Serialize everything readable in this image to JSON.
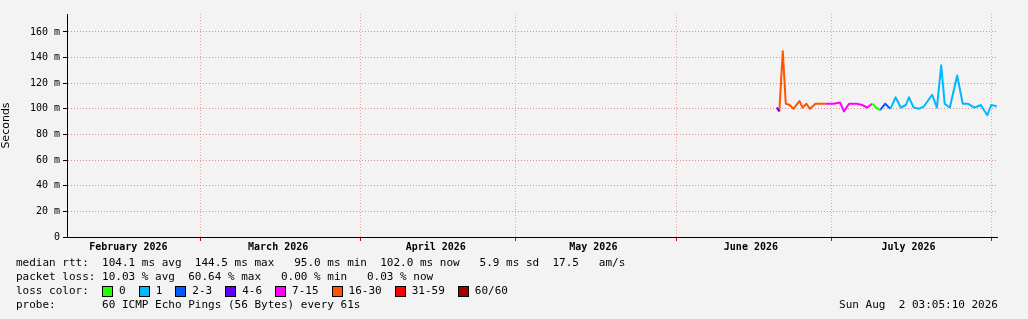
{
  "chart_data": {
    "type": "line",
    "ylabel": "Seconds",
    "legend_title": "loss color:",
    "legend": "bottom",
    "grid": true,
    "marker": "none",
    "line_style": "solid",
    "xlim": [
      "2026-02-03T03:05",
      "2026-08-02T03:05"
    ],
    "xticks": [
      {
        "value": "2026-02-15",
        "label": "February 2026"
      },
      {
        "value": "2026-03-01",
        "label": null
      },
      {
        "value": "2026-03-16",
        "label": "March 2026"
      },
      {
        "value": "2026-04-01",
        "label": null
      },
      {
        "value": "2026-04-15T12:00",
        "label": "April 2026"
      },
      {
        "value": "2026-05-01",
        "label": null
      },
      {
        "value": "2026-05-16",
        "label": "May 2026"
      },
      {
        "value": "2026-06-01",
        "label": null
      },
      {
        "value": "2026-06-15T12:00",
        "label": "June 2026"
      },
      {
        "value": "2026-07-01",
        "label": null
      },
      {
        "value": "2026-07-16",
        "label": "July 2026"
      },
      {
        "value": "2026-08-01",
        "label": null
      }
    ],
    "ylim": [
      0,
      174
    ],
    "yticks": [
      0,
      {
        "value": 20,
        "label": "20 m"
      },
      {
        "value": 40,
        "label": "40 m"
      },
      {
        "value": 60,
        "label": "60 m"
      },
      {
        "value": 80,
        "label": "80 m"
      },
      {
        "value": 100,
        "label": "100 m"
      },
      {
        "value": 120,
        "label": "120 m"
      },
      {
        "value": 140,
        "label": "140 m"
      },
      {
        "value": 160,
        "label": "160 m"
      }
    ],
    "series": [
      {
        "name": "0",
        "color": "#26ff00",
        "x": [
          "2026-07-09T00:00",
          "2026-07-09T18:00",
          "2026-07-10T12:00"
        ],
        "values": [
          104,
          101,
          99
        ]
      },
      {
        "name": "1",
        "color": "#00b8ff",
        "x": [
          "2026-07-12T12:00",
          "2026-07-13T12:00",
          "2026-07-14T12:00",
          "2026-07-15T12:00",
          "2026-07-16T02:00",
          "2026-07-17T00:00",
          "2026-07-18T00:00",
          "2026-07-19T00:00",
          "2026-07-20T14:00",
          "2026-07-21T12:00",
          "2026-07-22T08:00",
          "2026-07-23T00:00",
          "2026-07-24T00:00",
          "2026-07-25T10:00",
          "2026-07-26T12:00",
          "2026-07-27T12:00",
          "2026-07-28T18:00",
          "2026-07-30T00:00",
          "2026-07-31T06:00",
          "2026-08-01T00:00",
          "2026-08-02T02:00"
        ],
        "values": [
          100,
          109,
          101,
          103,
          109,
          101,
          100,
          102,
          111,
          101,
          134,
          104,
          101,
          126,
          104,
          104,
          101,
          103,
          95,
          103,
          102
        ]
      },
      {
        "name": "2-3",
        "color": "#0059ff",
        "x": [
          "2026-07-10T12:00",
          "2026-07-11T12:00",
          "2026-07-12T12:00"
        ],
        "values": [
          99,
          104,
          100
        ]
      },
      {
        "name": "4-6",
        "color": "#5e00ff",
        "x": [
          "2026-06-20T12:00",
          "2026-06-21T00:00"
        ],
        "values": [
          101,
          98
        ]
      },
      {
        "name": "7-15",
        "color": "#ff00ff",
        "x": [
          "2026-06-30T00:00",
          "2026-07-01T12:00",
          "2026-07-02T18:00",
          "2026-07-03T12:00",
          "2026-07-04T12:00",
          "2026-07-06T00:00",
          "2026-07-07T00:00",
          "2026-07-08T00:00",
          "2026-07-09T00:00"
        ],
        "values": [
          104,
          104,
          105,
          98,
          104,
          104,
          103,
          101,
          104
        ]
      },
      {
        "name": "16-30",
        "color": "#ff5500",
        "x": [
          "2026-06-21T00:00",
          "2026-06-21T16:00",
          "2026-06-22T06:00",
          "2026-06-23T00:00",
          "2026-06-23T18:00",
          "2026-06-24T12:00",
          "2026-06-24T22:00",
          "2026-06-25T12:00",
          "2026-06-26T06:00",
          "2026-06-26T22:00",
          "2026-06-28T00:00",
          "2026-06-30T00:00"
        ],
        "values": [
          98,
          145,
          104,
          103,
          100,
          104,
          106,
          101,
          104,
          100,
          104,
          104
        ]
      },
      {
        "name": "31-59",
        "color": "#ff0000"
      },
      {
        "name": "60/60",
        "color": "#a10000"
      }
    ],
    "annotations": [
      "median rtt:  104.1 ms avg  144.5 ms max   95.0 ms min  102.0 ms now   5.9 ms sd  17.5   am/s",
      "packet loss: 10.03 % avg  60.64 % max   0.00 % min   0.03 % now",
      "probe:       60 ICMP Echo Pings (56 Bytes) every 61s",
      "Sun Aug  2 03:05:10 2026"
    ]
  }
}
